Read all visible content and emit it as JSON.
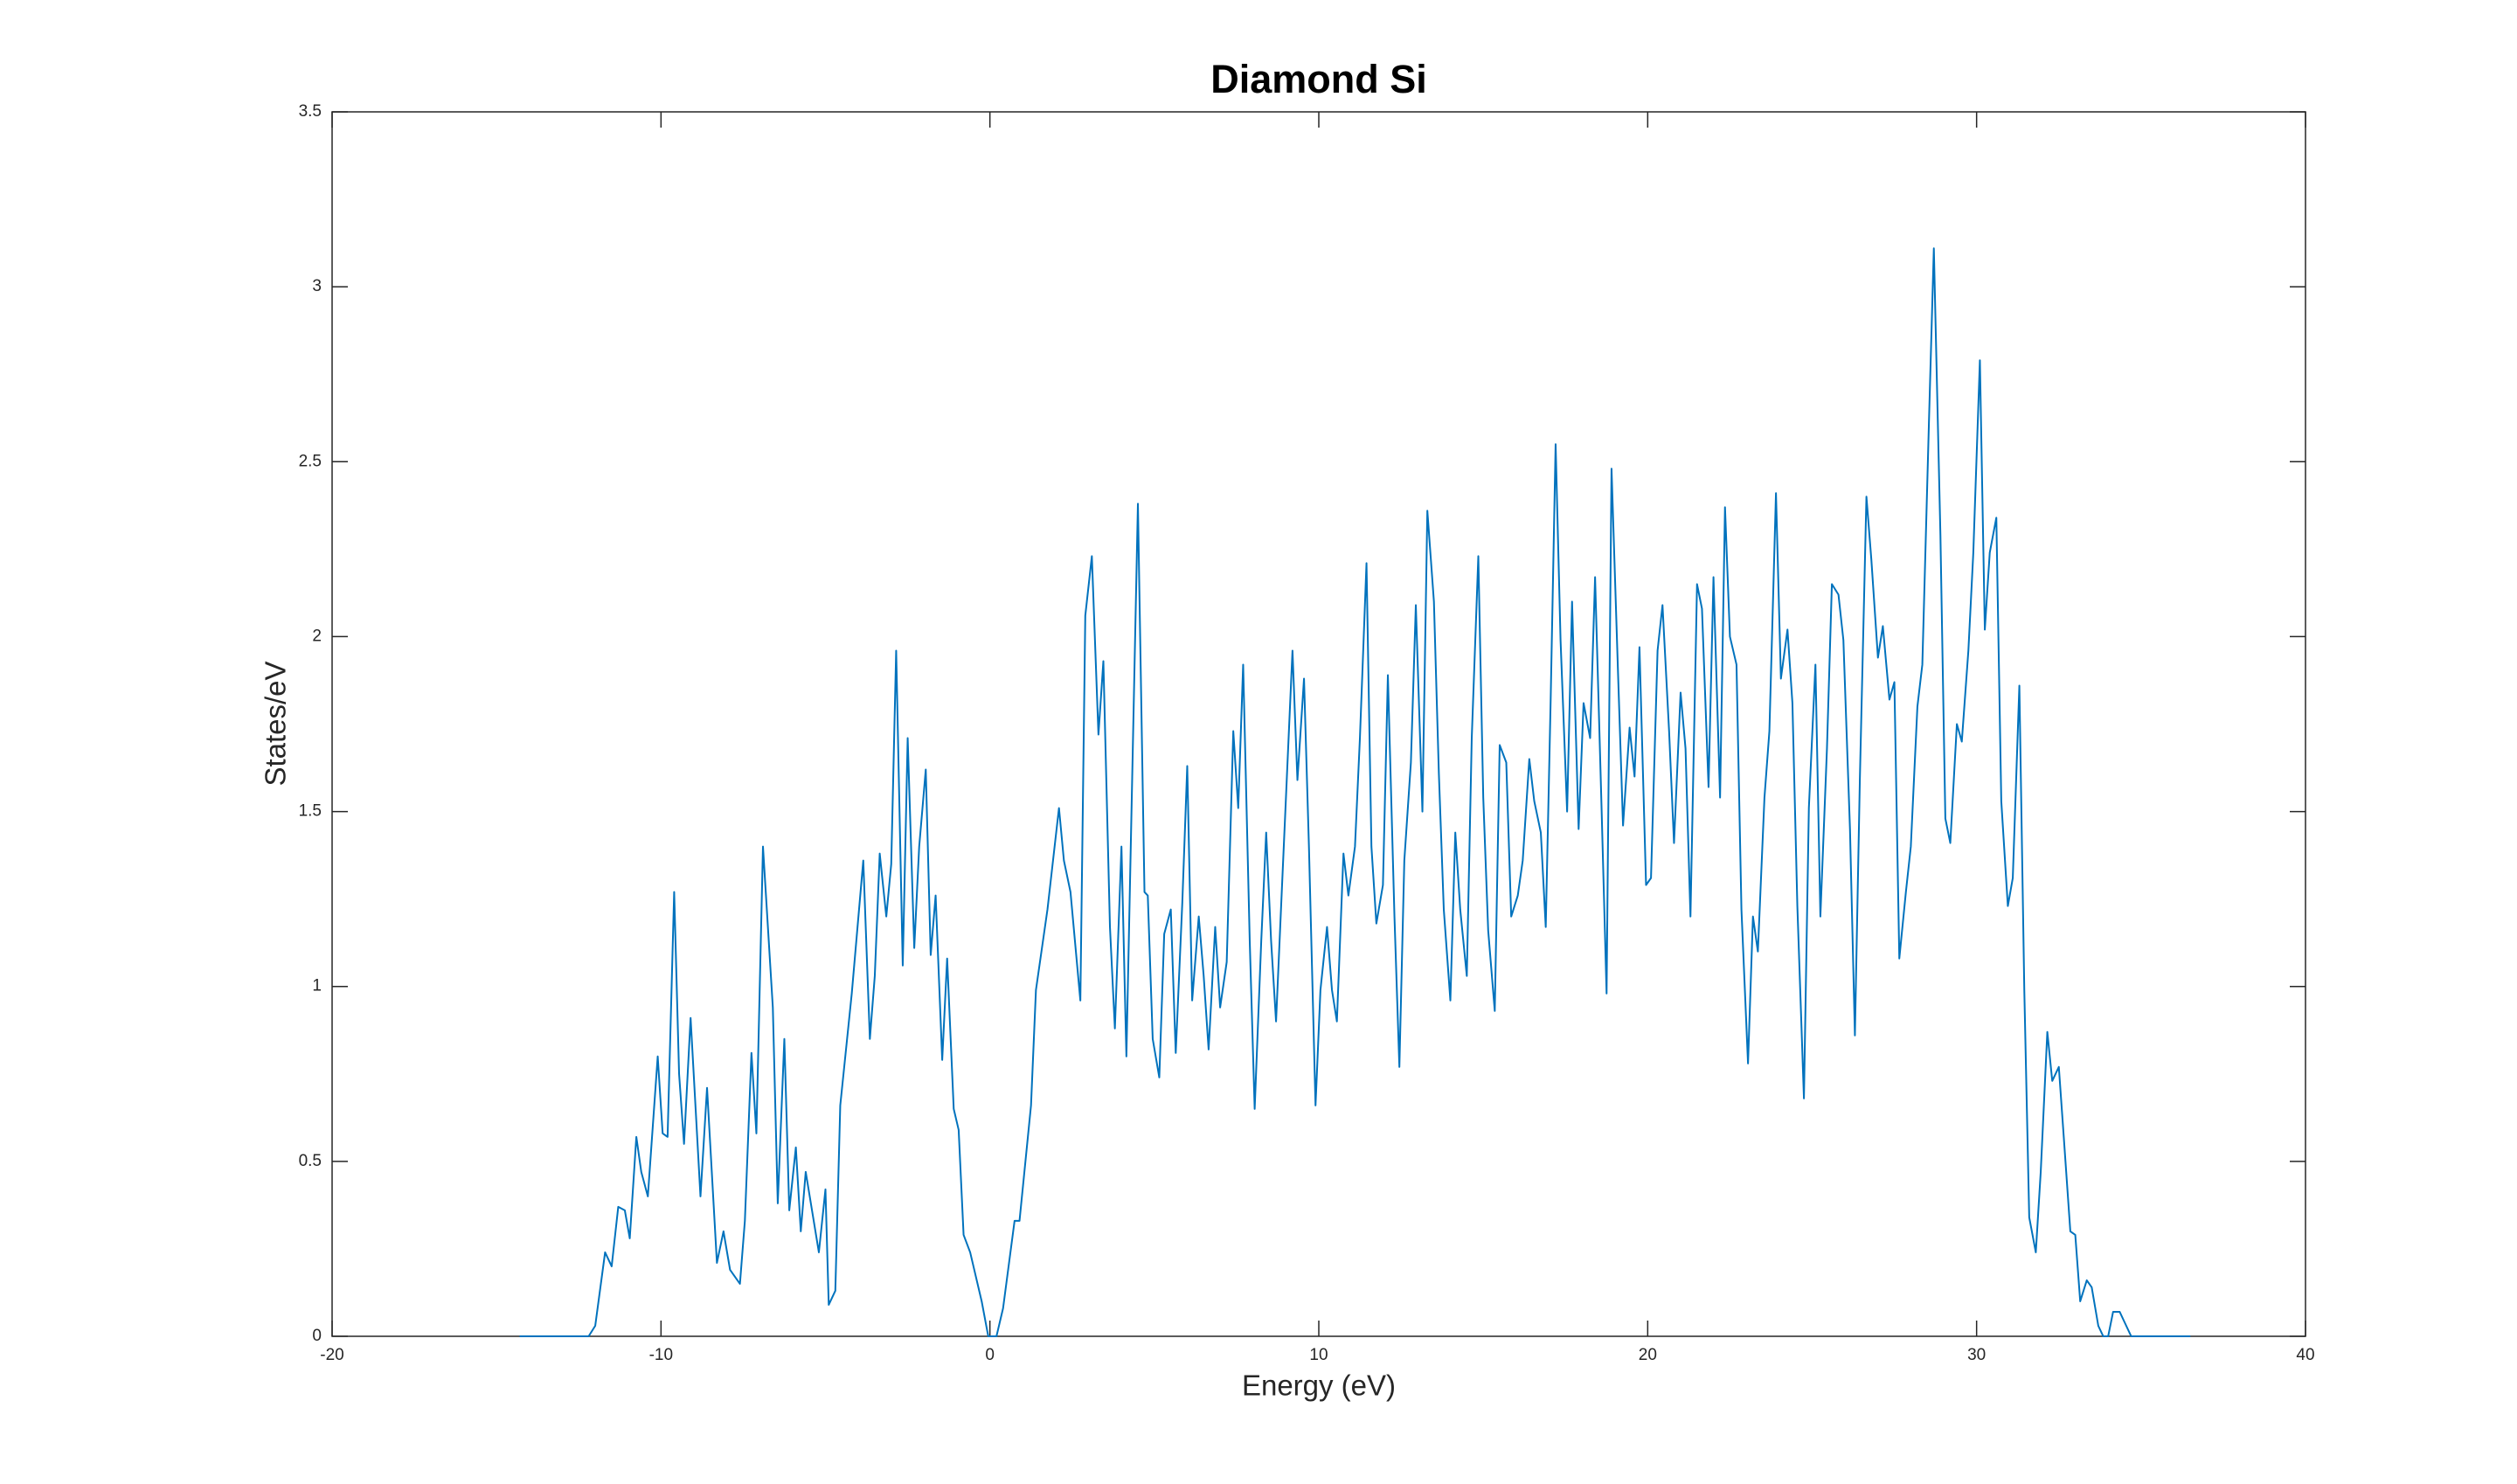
{
  "chart_data": {
    "type": "line",
    "title": "Diamond Si",
    "x_label": "Energy (eV)",
    "y_label": "States/eV",
    "color": "#0072bd",
    "grid": false,
    "xlim": [
      -20,
      40
    ],
    "xticks": [
      -20,
      -10,
      0,
      10,
      20,
      30,
      40
    ],
    "ylim": [
      0,
      3.5
    ],
    "yticks": [
      0,
      0.5,
      1,
      1.5,
      2,
      2.5,
      3,
      3.5
    ],
    "x": [
      -14.3,
      -12.2,
      -12.0,
      -11.7,
      -11.5,
      -11.3,
      -11.1,
      -10.95,
      -10.75,
      -10.6,
      -10.4,
      -10.1,
      -9.95,
      -9.8,
      -9.6,
      -9.45,
      -9.3,
      -9.1,
      -8.8,
      -8.6,
      -8.3,
      -8.1,
      -7.9,
      -7.6,
      -7.45,
      -7.25,
      -7.1,
      -6.9,
      -6.6,
      -6.45,
      -6.25,
      -6.1,
      -5.9,
      -5.75,
      -5.6,
      -5.2,
      -5.0,
      -4.9,
      -4.7,
      -4.55,
      -4.2,
      -3.85,
      -3.65,
      -3.5,
      -3.35,
      -3.15,
      -3.0,
      -2.85,
      -2.65,
      -2.5,
      -2.3,
      -2.15,
      -1.95,
      -1.8,
      -1.65,
      -1.45,
      -1.3,
      -1.1,
      -0.95,
      -0.8,
      -0.6,
      -0.25,
      -0.05,
      0.2,
      0.4,
      0.75,
      0.9,
      1.25,
      1.4,
      1.75,
      2.1,
      2.25,
      2.45,
      2.75,
      2.9,
      3.1,
      3.3,
      3.45,
      3.65,
      3.8,
      4.0,
      4.15,
      4.5,
      4.7,
      4.8,
      4.95,
      5.15,
      5.3,
      5.5,
      5.65,
      5.85,
      6.0,
      6.15,
      6.35,
      6.5,
      6.65,
      6.85,
      7.0,
      7.2,
      7.4,
      7.55,
      7.7,
      7.9,
      8.05,
      8.25,
      8.4,
      8.55,
      8.7,
      8.85,
      9.2,
      9.35,
      9.55,
      9.7,
      9.9,
      10.05,
      10.25,
      10.4,
      10.55,
      10.75,
      10.9,
      11.1,
      11.25,
      11.45,
      11.6,
      11.75,
      11.95,
      12.1,
      12.3,
      12.45,
      12.6,
      12.8,
      12.95,
      13.15,
      13.3,
      13.5,
      13.65,
      13.8,
      14.0,
      14.15,
      14.3,
      14.5,
      14.65,
      14.85,
      15.0,
      15.15,
      15.35,
      15.5,
      15.7,
      15.85,
      16.05,
      16.2,
      16.4,
      16.55,
      16.75,
      16.9,
      17.05,
      17.2,
      17.35,
      17.55,
      17.7,
      17.9,
      18.05,
      18.25,
      18.4,
      18.6,
      18.75,
      18.9,
      19.1,
      19.25,
      19.45,
      19.6,
      19.75,
      19.95,
      20.1,
      20.3,
      20.45,
      20.65,
      20.8,
      21.0,
      21.15,
      21.3,
      21.5,
      21.65,
      21.85,
      22.0,
      22.2,
      22.35,
      22.5,
      22.7,
      22.85,
      23.05,
      23.2,
      23.35,
      23.55,
      23.7,
      23.9,
      24.05,
      24.25,
      24.4,
      24.55,
      24.75,
      24.9,
      25.1,
      25.25,
      25.45,
      25.6,
      25.8,
      25.95,
      26.15,
      26.3,
      26.45,
      26.65,
      26.8,
      27.0,
      27.15,
      27.35,
      27.5,
      27.65,
      27.85,
      28.0,
      28.2,
      28.35,
      28.55,
      28.7,
      28.9,
      29.05,
      29.2,
      29.4,
      29.55,
      29.75,
      29.9,
      30.1,
      30.25,
      30.4,
      30.6,
      30.75,
      30.95,
      31.1,
      31.3,
      31.45,
      31.6,
      31.8,
      31.95,
      32.15,
      32.3,
      32.5,
      32.65,
      32.85,
      33.0,
      33.15,
      33.35,
      33.5,
      33.7,
      33.85,
      34.0,
      34.15,
      34.35,
      34.5,
      34.7,
      36.5
    ],
    "values": [
      0,
      0,
      0.03,
      0.24,
      0.2,
      0.37,
      0.36,
      0.28,
      0.57,
      0.47,
      0.4,
      0.8,
      0.58,
      0.57,
      1.27,
      0.75,
      0.55,
      0.91,
      0.4,
      0.71,
      0.21,
      0.3,
      0.19,
      0.15,
      0.33,
      0.81,
      0.58,
      1.4,
      0.94,
      0.38,
      0.85,
      0.36,
      0.54,
      0.3,
      0.47,
      0.24,
      0.42,
      0.09,
      0.13,
      0.66,
      0.98,
      1.36,
      0.85,
      1.03,
      1.38,
      1.2,
      1.35,
      1.96,
      1.06,
      1.71,
      1.11,
      1.4,
      1.62,
      1.09,
      1.26,
      0.79,
      1.08,
      0.65,
      0.59,
      0.29,
      0.24,
      0.1,
      0,
      0,
      0.08,
      0.33,
      0.33,
      0.66,
      0.99,
      1.22,
      1.51,
      1.36,
      1.27,
      0.96,
      2.06,
      2.23,
      1.72,
      1.93,
      1.17,
      0.88,
      1.4,
      0.8,
      2.38,
      1.27,
      1.26,
      0.85,
      0.74,
      1.15,
      1.22,
      0.81,
      1.24,
      1.63,
      0.96,
      1.2,
      1.03,
      0.82,
      1.17,
      0.94,
      1.07,
      1.73,
      1.51,
      1.92,
      1.13,
      0.65,
      1.13,
      1.44,
      1.13,
      0.9,
      1.22,
      1.96,
      1.59,
      1.88,
      1.4,
      0.66,
      0.99,
      1.17,
      0.99,
      0.9,
      1.38,
      1.26,
      1.4,
      1.71,
      2.21,
      1.4,
      1.18,
      1.29,
      1.89,
      1.2,
      0.77,
      1.36,
      1.64,
      2.09,
      1.5,
      2.36,
      2.1,
      1.61,
      1.22,
      0.96,
      1.44,
      1.22,
      1.03,
      1.71,
      2.23,
      1.54,
      1.16,
      0.93,
      1.69,
      1.64,
      1.2,
      1.26,
      1.36,
      1.65,
      1.53,
      1.44,
      1.17,
      1.82,
      2.55,
      1.99,
      1.5,
      2.1,
      1.45,
      1.81,
      1.71,
      2.17,
      1.5,
      0.98,
      2.48,
      1.89,
      1.46,
      1.74,
      1.6,
      1.97,
      1.29,
      1.31,
      1.96,
      2.09,
      1.73,
      1.41,
      1.84,
      1.68,
      1.2,
      2.15,
      2.08,
      1.57,
      2.17,
      1.54,
      2.37,
      2.0,
      1.92,
      1.22,
      0.78,
      1.2,
      1.1,
      1.54,
      1.73,
      2.41,
      1.88,
      2.02,
      1.81,
      1.23,
      0.68,
      1.51,
      1.92,
      1.2,
      1.68,
      2.15,
      2.12,
      1.99,
      1.45,
      0.86,
      1.59,
      2.4,
      2.22,
      1.94,
      2.03,
      1.82,
      1.87,
      1.08,
      1.27,
      1.4,
      1.8,
      1.92,
      2.61,
      3.11,
      2.29,
      1.48,
      1.41,
      1.75,
      1.7,
      1.96,
      2.24,
      2.79,
      2.02,
      2.24,
      2.34,
      1.53,
      1.23,
      1.31,
      1.86,
      0.99,
      0.34,
      0.24,
      0.47,
      0.87,
      0.73,
      0.77,
      0.57,
      0.3,
      0.29,
      0.1,
      0.16,
      0.14,
      0.03,
      0,
      0,
      0.07,
      0.07,
      0.04,
      0,
      0
    ]
  }
}
